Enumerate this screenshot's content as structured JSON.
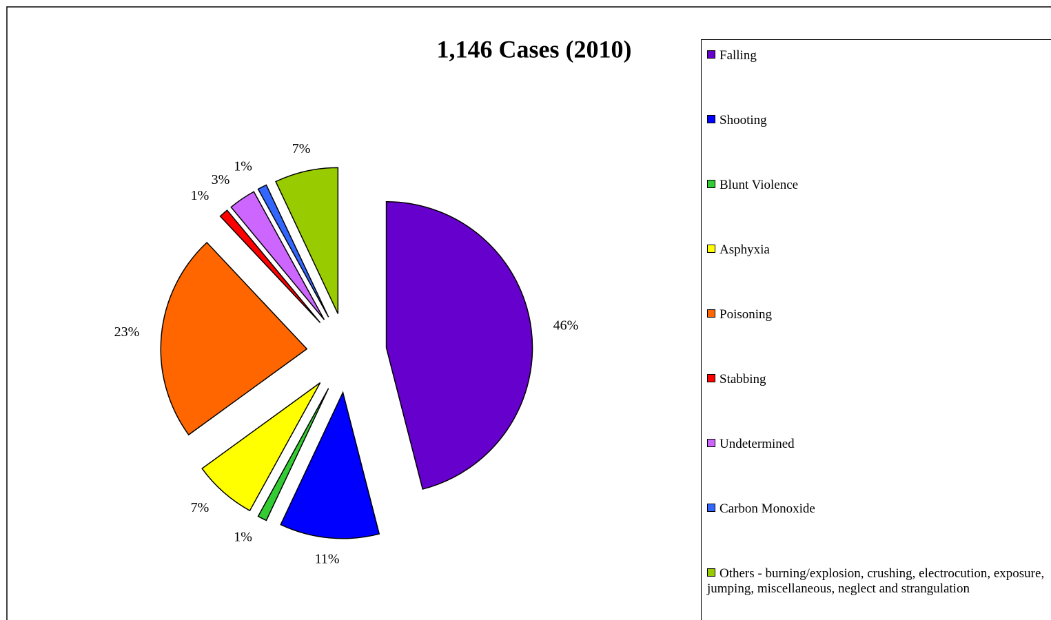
{
  "chart_data": {
    "type": "pie",
    "title": "1,146 Cases (2010)",
    "legend": "right",
    "exploded": true,
    "categories": [
      "Falling",
      "Shooting",
      "Blunt Violence",
      "Asphyxia",
      "Poisoning",
      "Stabbing",
      "Undetermined",
      "Carbon Monoxide",
      "Others - burning/explosion, crushing, electrocution, exposure, jumping, miscellaneous, neglect and strangulation"
    ],
    "values": [
      46,
      11,
      1,
      7,
      23,
      1,
      3,
      1,
      7
    ],
    "value_labels": [
      "46%",
      "11%",
      "1%",
      "7%",
      "23%",
      "1%",
      "3%",
      "1%",
      "7%"
    ],
    "colors": [
      "#6600cc",
      "#0000ff",
      "#33cc33",
      "#ffff00",
      "#ff6600",
      "#ff0000",
      "#cc66ff",
      "#3366ff",
      "#99cc00"
    ]
  }
}
